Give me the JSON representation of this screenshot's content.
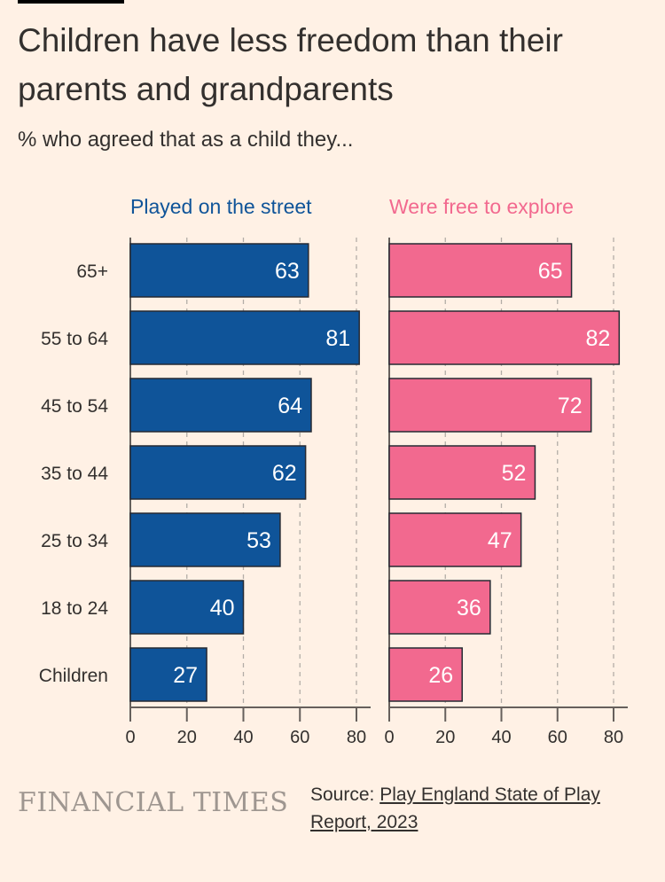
{
  "title": "Children have less freedom than their parents and grandparents",
  "subtitle": "% who agreed that as a child they...",
  "source_label": "Source:",
  "source_link": "Play England State of Play Report, 2023",
  "logo": "FINANCIAL TIMES",
  "colors": {
    "background": "#fff1e5",
    "series1": "#0f5499",
    "series2": "#f2698f",
    "grid": "#b3ada7",
    "text": "#33302e"
  },
  "chart_data": {
    "type": "bar",
    "orientation": "horizontal",
    "categories": [
      "65+",
      "55 to 64",
      "45 to 54",
      "35 to 44",
      "25 to 34",
      "18 to 24",
      "Children"
    ],
    "series": [
      {
        "name": "Played on the street",
        "values": [
          63,
          81,
          64,
          62,
          53,
          40,
          27
        ]
      },
      {
        "name": "Were free to explore",
        "values": [
          65,
          82,
          72,
          52,
          47,
          36,
          26
        ]
      }
    ],
    "xlim": [
      0,
      80
    ],
    "xticks": [
      "0",
      "20",
      "40",
      "60",
      "80"
    ],
    "xlabel": "",
    "ylabel": "",
    "grid": true
  }
}
